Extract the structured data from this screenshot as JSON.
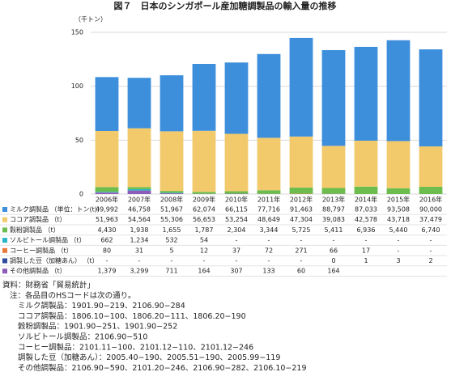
{
  "chart_data": {
    "type": "stacked_bar",
    "title": "図７　日本のシンガポール産加糖調製品の輸入量の推移",
    "y_unit": "（千トン）",
    "categories": [
      "2006年",
      "2007年",
      "2008年",
      "2009年",
      "2010年",
      "2011年",
      "2012年",
      "2013年",
      "2014年",
      "2015年",
      "2016年"
    ],
    "ylim": [
      0,
      150
    ],
    "yticks": [
      0,
      50,
      100,
      150
    ],
    "grid": true,
    "series": [
      {
        "name": "ミルク調製品 （単位：トン(t)）",
        "color": "#3d8fdc",
        "values": [
          49.992,
          46.758,
          51.967,
          62.074,
          66.115,
          77.716,
          91.463,
          88.797,
          87.033,
          93.508,
          90.0
        ],
        "value_labels": [
          "49,992",
          "46,758",
          "51,967",
          "62,074",
          "66,115",
          "77,716",
          "91,463",
          "88,797",
          "87,033",
          "93,508",
          "90,000"
        ]
      },
      {
        "name": "ココア調製品 （t）",
        "color": "#f2ca6b",
        "values": [
          51.963,
          54.564,
          55.306,
          56.653,
          53.254,
          48.649,
          47.304,
          39.083,
          42.578,
          43.718,
          37.479
        ],
        "value_labels": [
          "51,963",
          "54,564",
          "55,306",
          "56,653",
          "53,254",
          "48,649",
          "47,304",
          "39,083",
          "42,578",
          "43,718",
          "37,479"
        ]
      },
      {
        "name": "穀粉調製品 （t）",
        "color": "#6cbd4e",
        "values": [
          4.43,
          1.938,
          1.655,
          1.787,
          2.304,
          3.344,
          5.725,
          5.411,
          6.936,
          5.44,
          6.74
        ],
        "value_labels": [
          "4,430",
          "1,938",
          "1,655",
          "1,787",
          "2,304",
          "3,344",
          "5,725",
          "5,411",
          "6,936",
          "5,440",
          "6,740"
        ]
      },
      {
        "name": "ソルビトール調製品 （t）",
        "color": "#28b4c8",
        "values": [
          0.662,
          1.234,
          0.532,
          0.054,
          null,
          null,
          null,
          null,
          null,
          null,
          null
        ],
        "value_labels": [
          "662",
          "1,234",
          "532",
          "54",
          "-",
          "-",
          "-",
          "-",
          "-",
          "-",
          "-"
        ]
      },
      {
        "name": "コーヒー調製品 （t）",
        "color": "#ea7a3a",
        "values": [
          0.08,
          0.031,
          0.005,
          0.012,
          0.037,
          0.072,
          0.271,
          0.066,
          0.017,
          null,
          null
        ],
        "value_labels": [
          "80",
          "31",
          "5",
          "12",
          "37",
          "72",
          "271",
          "66",
          "17",
          "-",
          "-"
        ]
      },
      {
        "name": "調製した豆（加糖あん） （t）",
        "color": "#2f4b9c",
        "values": [
          null,
          null,
          null,
          null,
          null,
          null,
          null,
          0,
          0.001,
          0.003,
          0.002
        ],
        "value_labels": [
          "-",
          "-",
          "-",
          "-",
          "-",
          "-",
          "-",
          "0",
          "1",
          "3",
          "2"
        ]
      },
      {
        "name": "その他調製品 （t）",
        "color": "#8c5cba",
        "values": [
          1.379,
          3.299,
          0.711,
          0.164,
          0.307,
          0.133,
          0.06,
          0.164,
          null,
          null,
          null
        ],
        "value_labels": [
          "1,379",
          "3,299",
          "711",
          "164",
          "307",
          "133",
          "60",
          "164",
          null,
          null,
          null
        ]
      }
    ],
    "notes": [
      "資料：財務省「貿易統計」",
      "注：各品目のHSコードは次の通り。",
      "ミルク調製品：1901.90−219、2106.90−284",
      "ココア調製品：1806.10−100、1806.20−111、1806.20−190",
      "穀粉調製品：1901.90−251、1901.90−252",
      "ソルビトール調製品：2106.90−510",
      "コーヒー調製品：2101.11−100、2101.12−110、2101.12−246",
      "調製した豆（加糖あん）：2005.40−190、2005.51−190、2005.99−119",
      "その他調製品：2106.90−590、2101.20−246、2106.90−282、2106.10−219"
    ]
  }
}
